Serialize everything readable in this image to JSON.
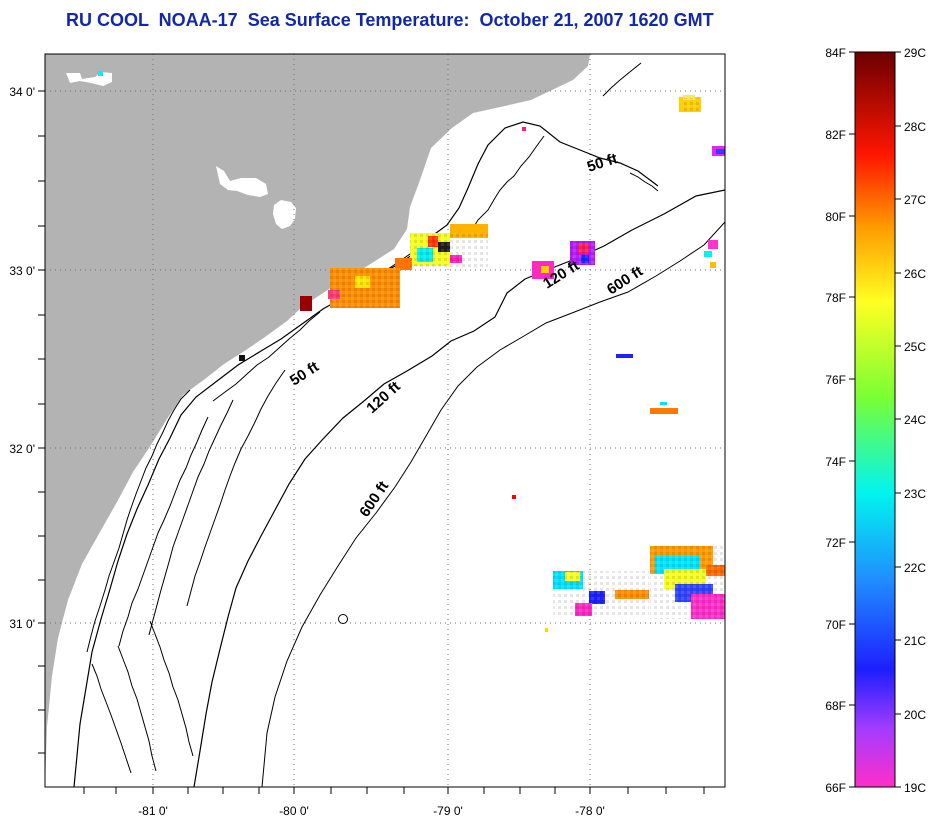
{
  "title": "RU COOL  NOAA-17  Sea Surface Temperature:  October 21, 2007 1620 GMT",
  "map": {
    "lon_labels": [
      "-81 0'",
      "-80 0'",
      "-79 0'",
      "-78 0'"
    ],
    "lat_labels": [
      "34 0'",
      "33 0'",
      "32 0'",
      "31 0'"
    ],
    "contour_labels": [
      "50 ft",
      "120 ft",
      "600 ft",
      "50 ft",
      "120 ft",
      "600 ft"
    ],
    "colors": {
      "land": "#b3b3b3",
      "ocean": "#ffffff",
      "contour": "#000000",
      "graticule": "#6f6f6f",
      "title": "#1228a8"
    }
  },
  "colorbar": {
    "fahrenheit_labels": [
      "84F",
      "82F",
      "80F",
      "78F",
      "76F",
      "74F",
      "72F",
      "70F",
      "68F",
      "66F"
    ],
    "celsius_labels": [
      "29C",
      "28C",
      "27C",
      "26C",
      "25C",
      "24C",
      "23C",
      "22C",
      "21C",
      "20C",
      "19C"
    ],
    "gradient_colors": [
      "#7a0000",
      "#ff0000",
      "#ff6a00",
      "#ffd400",
      "#f3ff21",
      "#86ff37",
      "#00f3e8",
      "#2b9cff",
      "#1d1fff",
      "#7f3dff",
      "#ff29c8"
    ]
  }
}
